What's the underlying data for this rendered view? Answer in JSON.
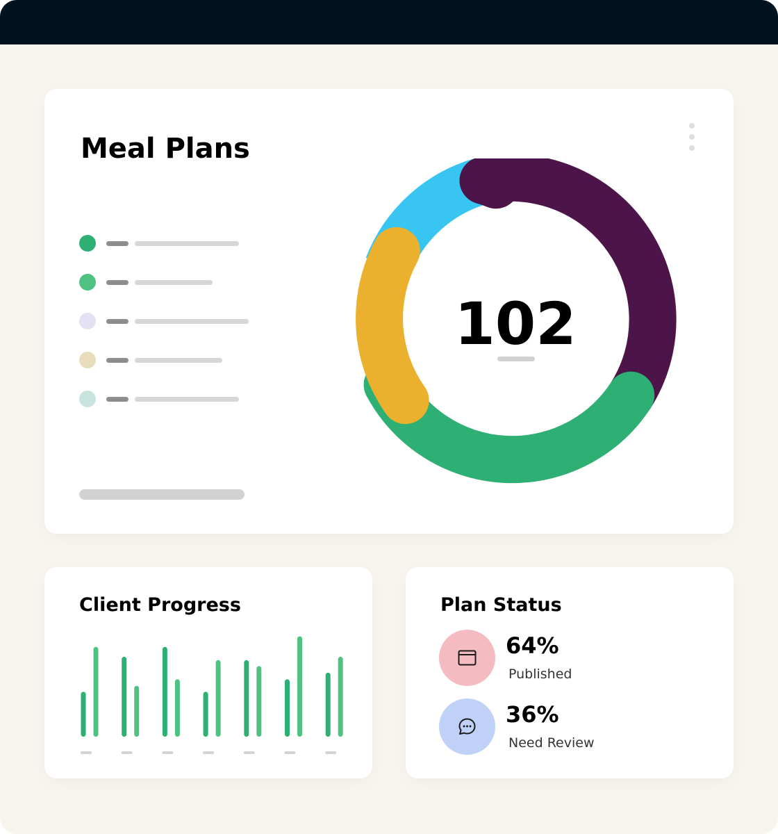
{
  "meal_plans": {
    "title": "Meal Plans",
    "total": "102",
    "legend_colors": [
      "#2eaf74",
      "#4fc183",
      "#e6e0f3",
      "#e7dcbc",
      "#c9e4df"
    ],
    "legend_line_widths": [
      150,
      112,
      164,
      126,
      150
    ],
    "donut": {
      "segments": [
        {
          "color": "#4c1448"
        },
        {
          "color": "#2eaf74"
        },
        {
          "color": "#ebb02e"
        },
        {
          "color": "#39c5f1"
        }
      ]
    }
  },
  "client_progress": {
    "title": "Client Progress",
    "chart_data": {
      "type": "bar",
      "categories": [
        "",
        "",
        "",
        "",
        "",
        "",
        ""
      ],
      "series": [
        {
          "values": [
            68,
            121,
            136,
            68,
            116,
            87,
            97
          ],
          "color": "#2eaf74"
        },
        {
          "values": [
            136,
            77,
            87,
            116,
            107,
            152,
            121
          ],
          "color": "#4fc183"
        }
      ],
      "ylim": [
        0,
        160
      ]
    }
  },
  "plan_status": {
    "title": "Plan Status",
    "items": [
      {
        "percent": "64%",
        "label": "Published",
        "color": "#f4bbc1",
        "icon": "window-icon"
      },
      {
        "percent": "36%",
        "label": "Need Review",
        "color": "#bfd1f6",
        "icon": "chat-icon"
      }
    ]
  }
}
